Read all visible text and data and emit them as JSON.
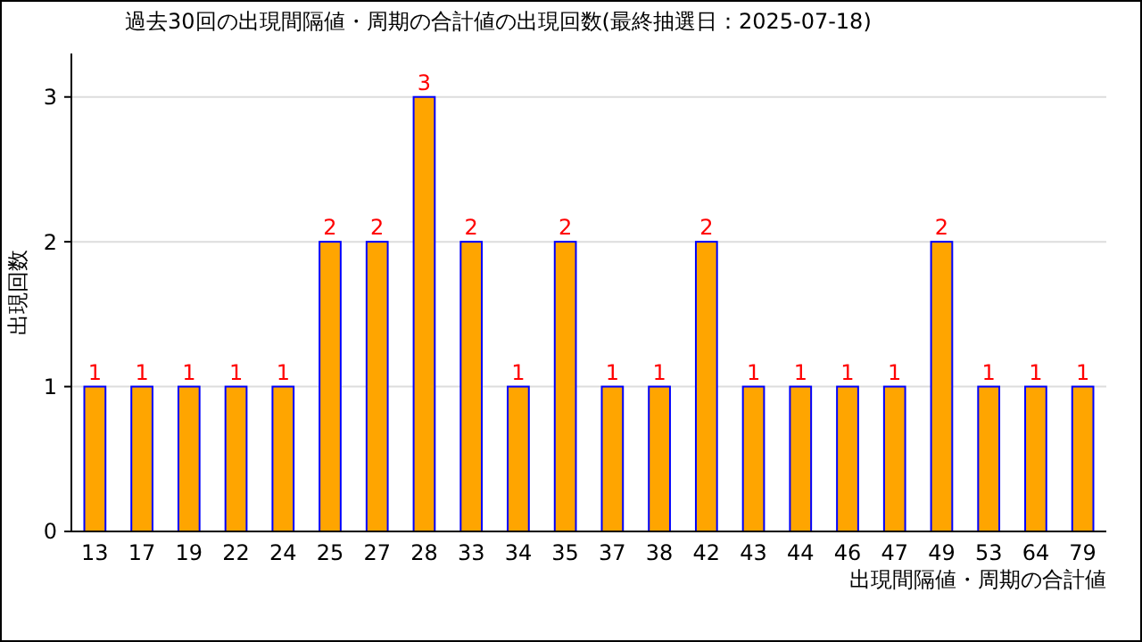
{
  "chart_data": {
    "type": "bar",
    "title": "過去30回の出現間隔値・周期の合計値の出現回数(最終抽選日：2025-07-18)",
    "xlabel": "出現間隔値・周期の合計値",
    "ylabel": "出現回数",
    "categories": [
      "13",
      "17",
      "19",
      "22",
      "24",
      "25",
      "27",
      "28",
      "33",
      "34",
      "35",
      "37",
      "38",
      "42",
      "43",
      "44",
      "46",
      "47",
      "49",
      "53",
      "64",
      "79"
    ],
    "values": [
      1,
      1,
      1,
      1,
      1,
      2,
      2,
      3,
      2,
      1,
      2,
      1,
      1,
      2,
      1,
      1,
      1,
      1,
      2,
      1,
      1,
      1
    ],
    "color": "#ffa500",
    "ylim": [
      0,
      3.3
    ],
    "yticks": [
      0,
      1,
      2,
      3
    ],
    "grid": "y",
    "data_labels": true
  }
}
